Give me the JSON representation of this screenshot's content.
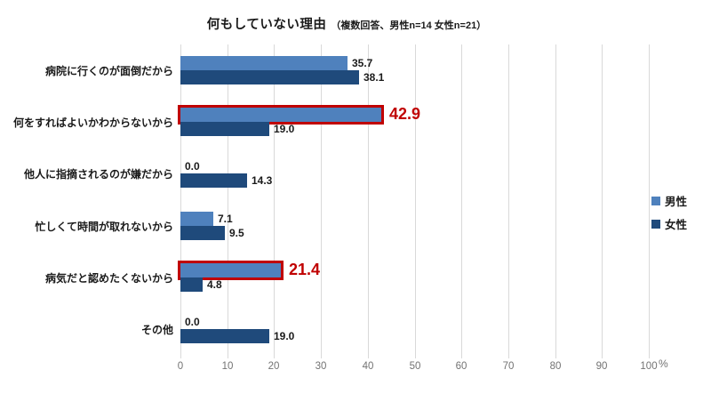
{
  "chart_data": {
    "type": "bar",
    "orientation": "horizontal",
    "title": "何もしていない理由",
    "subtitle": "（複数回答、男性n=14 女性n=21）",
    "categories": [
      "病院に行くのが面倒だから",
      "何をすればよいかわからないから",
      "他人に指摘されるのが嫌だから",
      "忙しくて時間が取れないから",
      "病気だと認めたくないから",
      "その他"
    ],
    "series": [
      {
        "name": "男性",
        "color": "#4F81BD",
        "values": [
          35.7,
          42.9,
          0.0,
          7.1,
          21.4,
          0.0
        ],
        "labels": [
          "35.7",
          "42.9",
          "0.0",
          "7.1",
          "21.4",
          "0.0"
        ]
      },
      {
        "name": "女性",
        "color": "#1F4A7B",
        "values": [
          38.1,
          19.0,
          14.3,
          9.5,
          4.8,
          19.0
        ],
        "labels": [
          "38.1",
          "19.0",
          "14.3",
          "9.5",
          "4.8",
          "19.0"
        ]
      }
    ],
    "highlighted": [
      {
        "series": 0,
        "index": 1
      },
      {
        "series": 0,
        "index": 4
      }
    ],
    "highlight_color": "#C00000",
    "xlim": [
      0,
      100
    ],
    "x_ticks": [
      "0",
      "10",
      "20",
      "30",
      "40",
      "50",
      "60",
      "70",
      "80",
      "90",
      "100"
    ],
    "x_unit": "%",
    "grid": true,
    "gridline_color": "#D9D9D9",
    "legend_position": "right"
  }
}
